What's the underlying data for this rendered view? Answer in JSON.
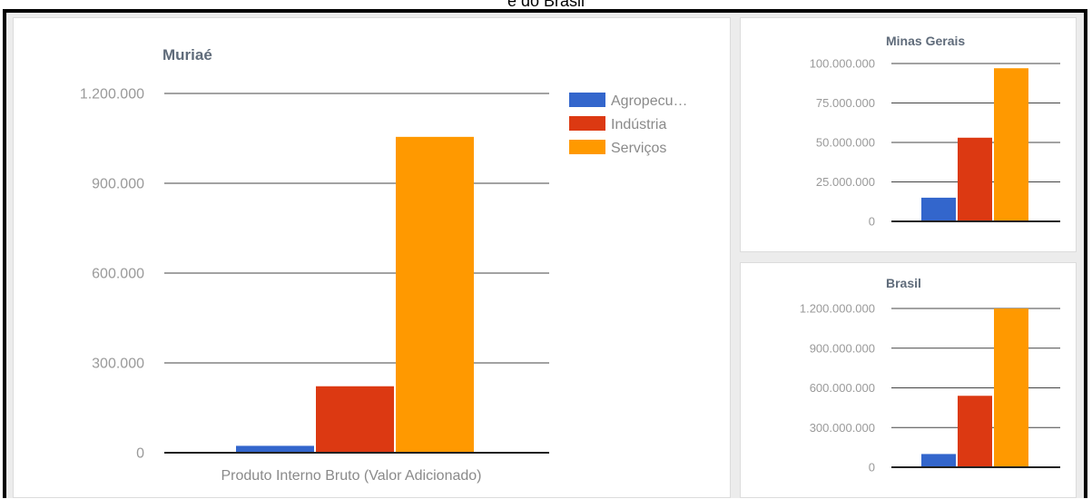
{
  "caption": "e do Brasil",
  "colors": {
    "agropecuaria": "#3366cc",
    "industria": "#dc3912",
    "servicos": "#ff9900"
  },
  "legend": [
    "Agropecu…",
    "Indústria",
    "Serviços"
  ],
  "chart_data": [
    {
      "type": "bar",
      "title": "Muriaé",
      "categories": [
        "Produto Interno Bruto (Valor Adicionado)"
      ],
      "series": [
        {
          "name": "Agropecu…",
          "values": [
            23000
          ]
        },
        {
          "name": "Indústria",
          "values": [
            222000
          ]
        },
        {
          "name": "Serviços",
          "values": [
            1055000
          ]
        }
      ],
      "ylim": [
        0,
        1200000
      ],
      "yticks": [
        "0",
        "300.000",
        "600.000",
        "900.000",
        "1.200.000"
      ],
      "legend": "right",
      "grid": true
    },
    {
      "type": "bar",
      "title": "Minas Gerais",
      "categories": [
        ""
      ],
      "series": [
        {
          "name": "Agropecu…",
          "values": [
            15000000
          ]
        },
        {
          "name": "Indústria",
          "values": [
            53000000
          ]
        },
        {
          "name": "Serviços",
          "values": [
            97000000
          ]
        }
      ],
      "ylim": [
        0,
        100000000
      ],
      "yticks": [
        "0",
        "25.000.000",
        "50.000.000",
        "75.000.000",
        "100.000.000"
      ],
      "grid": true
    },
    {
      "type": "bar",
      "title": "Brasil",
      "categories": [
        ""
      ],
      "series": [
        {
          "name": "Agropecu…",
          "values": [
            100000000
          ]
        },
        {
          "name": "Indústria",
          "values": [
            540000000
          ]
        },
        {
          "name": "Serviços",
          "values": [
            1200000000
          ]
        }
      ],
      "ylim": [
        0,
        1200000000
      ],
      "yticks": [
        "0",
        "300.000.000",
        "600.000.000",
        "900.000.000",
        "1.200.000.000"
      ],
      "grid": true
    }
  ]
}
